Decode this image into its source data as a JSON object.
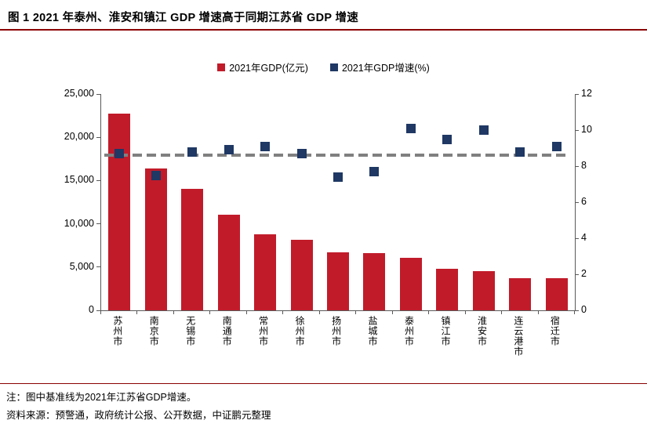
{
  "header": {
    "title": "图 1  2021 年泰州、淮安和镇江 GDP 增速高于同期江苏省 GDP 增速"
  },
  "footer": {
    "note": "注：图中基准线为2021年江苏省GDP增速。",
    "source": "资料来源：预警通，政府统计公报、公开数据，中证鹏元整理"
  },
  "colors": {
    "bar": "#c11b2a",
    "marker": "#1f3864",
    "baseline": "#808080",
    "rule": "#8b0000",
    "axis": "#595959"
  },
  "chart_data": {
    "type": "bar",
    "title": "2021 年泰州、淮安和镇江 GDP 增速高于同期江苏省 GDP 增速",
    "grid": false,
    "legend_position": "top",
    "categories": [
      "苏州市",
      "南京市",
      "无锡市",
      "南通市",
      "常州市",
      "徐州市",
      "扬州市",
      "盐城市",
      "泰州市",
      "镇江市",
      "淮安市",
      "连云港市",
      "宿迁市"
    ],
    "series": [
      {
        "name": "2021年GDP(亿元)",
        "type": "bar",
        "axis": "left",
        "values": [
          22718,
          16355,
          14003,
          11027,
          8808,
          8117,
          6696,
          6617,
          6025,
          4763,
          4550,
          3728,
          3719
        ]
      },
      {
        "name": "2021年GDP增速(%)",
        "type": "scatter-square",
        "axis": "right",
        "values": [
          8.7,
          7.5,
          8.8,
          8.9,
          9.1,
          8.7,
          7.4,
          7.7,
          10.1,
          9.5,
          10.0,
          8.8,
          9.1
        ]
      }
    ],
    "baseline": {
      "value": 8.6,
      "label": "2021年江苏省GDP增速"
    },
    "left_axis": {
      "min": 0,
      "max": 25000,
      "tick_labels": [
        "0",
        "5,000",
        "10,000",
        "15,000",
        "20,000",
        "25,000"
      ]
    },
    "right_axis": {
      "min": 0,
      "max": 12,
      "tick_labels": [
        "0",
        "2",
        "4",
        "6",
        "8",
        "10",
        "12"
      ]
    }
  }
}
